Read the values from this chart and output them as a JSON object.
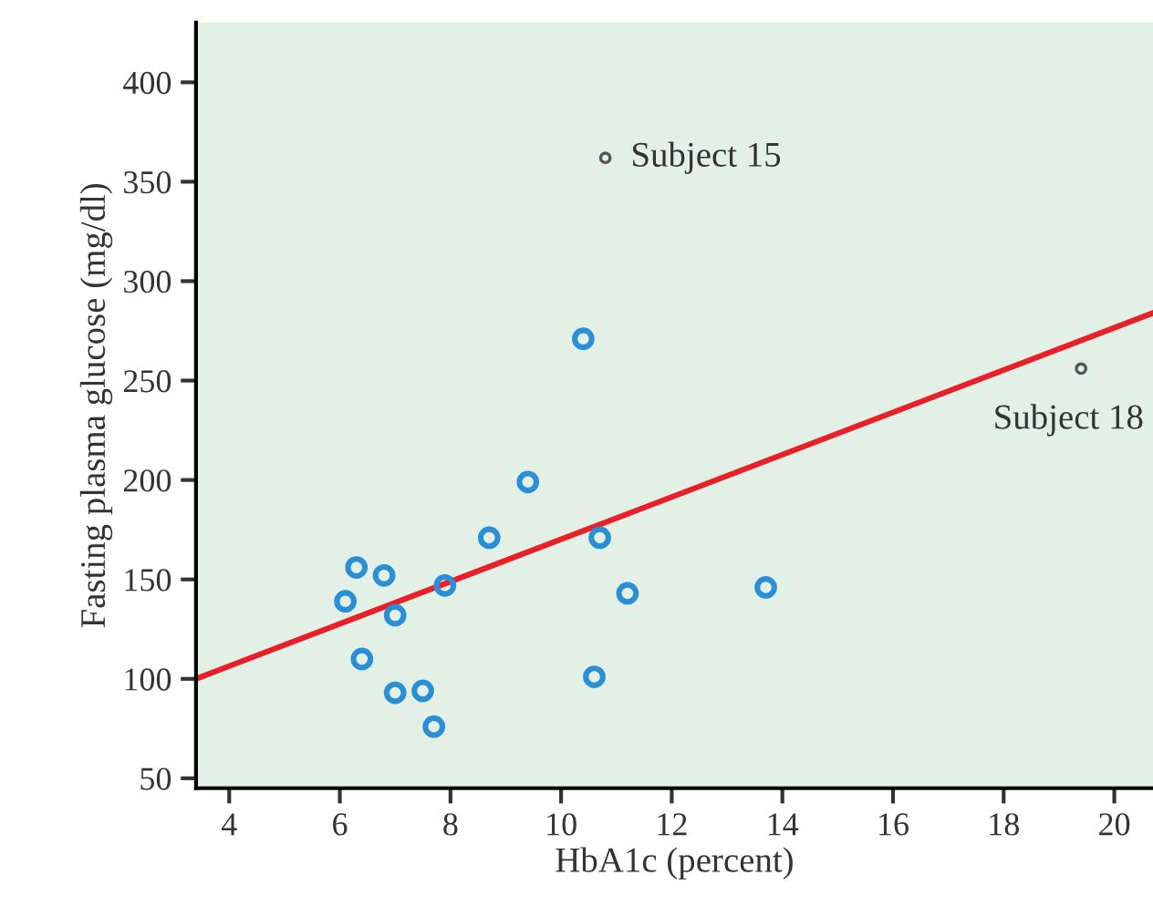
{
  "chart_data": {
    "type": "scatter",
    "xlabel": "HbA1c (percent)",
    "ylabel": "Fasting plasma glucose (mg/dl)",
    "xlim": [
      3.4,
      20.7
    ],
    "ylim": [
      45,
      430
    ],
    "xticks": [
      4,
      6,
      8,
      10,
      12,
      14,
      16,
      18,
      20
    ],
    "yticks": [
      50,
      100,
      150,
      200,
      250,
      300,
      350,
      400
    ],
    "grid": false,
    "marker": "circle",
    "series": [
      {
        "color": "#2a8fd4",
        "x": [
          10.4,
          9.4,
          8.7,
          10.7,
          6.3,
          6.8,
          6.1,
          7.9,
          7.0,
          11.2,
          13.7,
          6.4,
          10.6,
          7.0,
          7.5,
          7.7
        ],
        "values": [
          271,
          199,
          171,
          171,
          156,
          152,
          139,
          147,
          132,
          143,
          146,
          110,
          101,
          93,
          94,
          76
        ]
      },
      {
        "color": "#555555",
        "x": [
          10.8,
          19.4
        ],
        "values": [
          362,
          256
        ]
      },
      {
        "type": "line",
        "color": "#e8202a",
        "line_style": "solid",
        "marker": "none",
        "x": [
          3.4,
          20.7
        ],
        "values": [
          100,
          284
        ]
      }
    ],
    "annotations": [
      {
        "text": "Subject 15",
        "x": 10.8,
        "y": 362
      },
      {
        "text": "Subject 18",
        "x": 19.4,
        "y": 256
      }
    ]
  }
}
